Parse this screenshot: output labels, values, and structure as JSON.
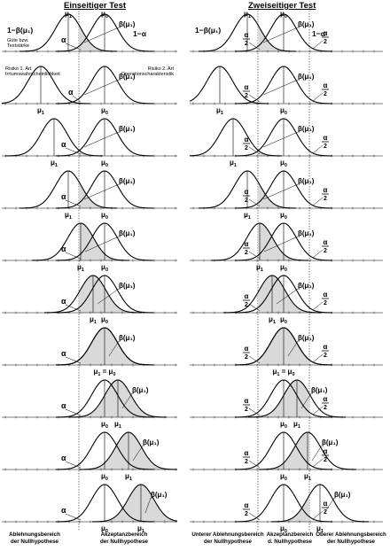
{
  "headers": {
    "left": "Einseitiger Test",
    "right": "Zweiseitiger Test"
  },
  "symbols": {
    "mu1": "μ",
    "mu0": "μ",
    "sub1": "1",
    "sub0": "0",
    "alpha": "α",
    "alpha_half_num": "α",
    "alpha_half_den": "2",
    "beta": "β(μ₁)",
    "one_minus_beta": "1−β(μ₁)",
    "one_minus_alpha": "1−α",
    "equal": "="
  },
  "left_annotations": {
    "guete_line1": "Güte bzw.",
    "guete_line2": "Teststärke",
    "risk1_line1": "Risiko 1. Art",
    "risk1_line2": "Irrtumswahrscheinlichkeit",
    "risk2_line1": "Risiko 2. Art",
    "risk2_line2": "Operationscharakteristik"
  },
  "footer": {
    "left_rejection": [
      "Ablehnungsbereich",
      "der Nullhypothese"
    ],
    "left_acceptance": [
      "Akzeptanzbereich",
      "der Nullhypothese"
    ],
    "right_lower": [
      "Unterer Ablehnungsbereich",
      "der Nullhypothese"
    ],
    "right_acceptance": [
      "Akzeptanzbereich",
      "d. Nullhypothese"
    ],
    "right_upper": [
      "Oberer Ablehnungsbereich",
      "der Nullhypothese"
    ]
  },
  "rows": [
    {
      "mu1_offset": -41
    },
    {
      "mu1_offset": -72
    },
    {
      "mu1_offset": -57
    },
    {
      "mu1_offset": -41
    },
    {
      "mu1_offset": -27
    },
    {
      "mu1_offset": -13
    },
    {
      "mu1_offset": 0
    },
    {
      "mu1_offset": 15
    },
    {
      "mu1_offset": 27
    },
    {
      "mu1_offset": 41
    }
  ]
}
